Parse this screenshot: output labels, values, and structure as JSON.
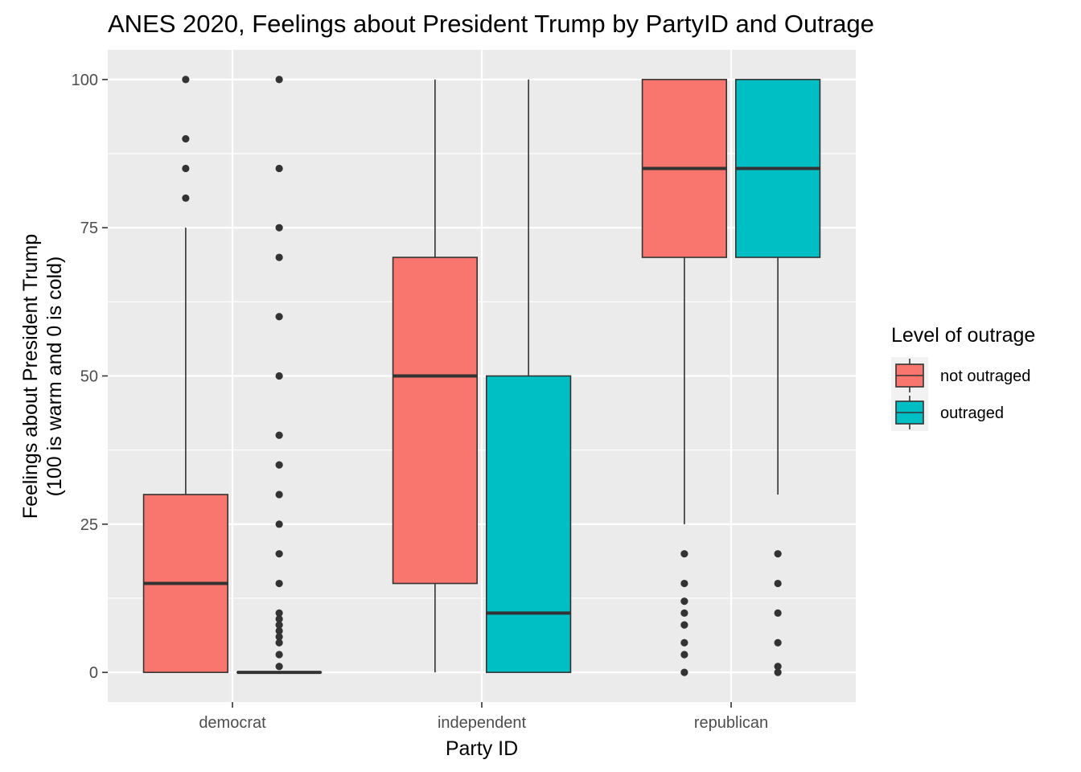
{
  "chart_data": {
    "type": "boxplot",
    "title": "ANES 2020, Feelings about President Trump by PartyID and Outrage",
    "xlabel": "Party ID",
    "ylabel": [
      "Feelings about President Trump",
      "(100 is warm and 0 is cold)"
    ],
    "ylim": [
      -5,
      105
    ],
    "yticks": [
      0,
      25,
      50,
      75,
      100
    ],
    "grid": true,
    "legend": {
      "title": "Level of outrage",
      "position": "right",
      "entries": [
        "not outraged",
        "outraged"
      ]
    },
    "categories": [
      "democrat",
      "independent",
      "republican"
    ],
    "series": [
      {
        "name": "not outraged",
        "color": "#F8766D",
        "boxes": [
          {
            "category": "democrat",
            "whisker_low": 0,
            "q1": 0,
            "median": 15,
            "q3": 30,
            "whisker_high": 75,
            "outliers": [
              80,
              85,
              90,
              100
            ]
          },
          {
            "category": "independent",
            "whisker_low": 0,
            "q1": 15,
            "median": 50,
            "q3": 70,
            "whisker_high": 100,
            "outliers": []
          },
          {
            "category": "republican",
            "whisker_low": 25,
            "q1": 70,
            "median": 85,
            "q3": 100,
            "whisker_high": 100,
            "outliers": [
              0,
              3,
              5,
              8,
              10,
              12,
              15,
              20
            ]
          }
        ]
      },
      {
        "name": "outraged",
        "color": "#00BFC4",
        "boxes": [
          {
            "category": "democrat",
            "whisker_low": 0,
            "q1": 0,
            "median": 0,
            "q3": 0,
            "whisker_high": 0,
            "outliers": [
              1,
              3,
              5,
              6,
              7,
              8,
              9,
              10,
              15,
              20,
              25,
              30,
              35,
              40,
              50,
              60,
              70,
              75,
              85,
              100
            ]
          },
          {
            "category": "independent",
            "whisker_low": 0,
            "q1": 0,
            "median": 10,
            "q3": 50,
            "whisker_high": 100,
            "outliers": []
          },
          {
            "category": "republican",
            "whisker_low": 30,
            "q1": 70,
            "median": 85,
            "q3": 100,
            "whisker_high": 100,
            "outliers": [
              0,
              1,
              5,
              10,
              15,
              20
            ]
          }
        ]
      }
    ]
  }
}
